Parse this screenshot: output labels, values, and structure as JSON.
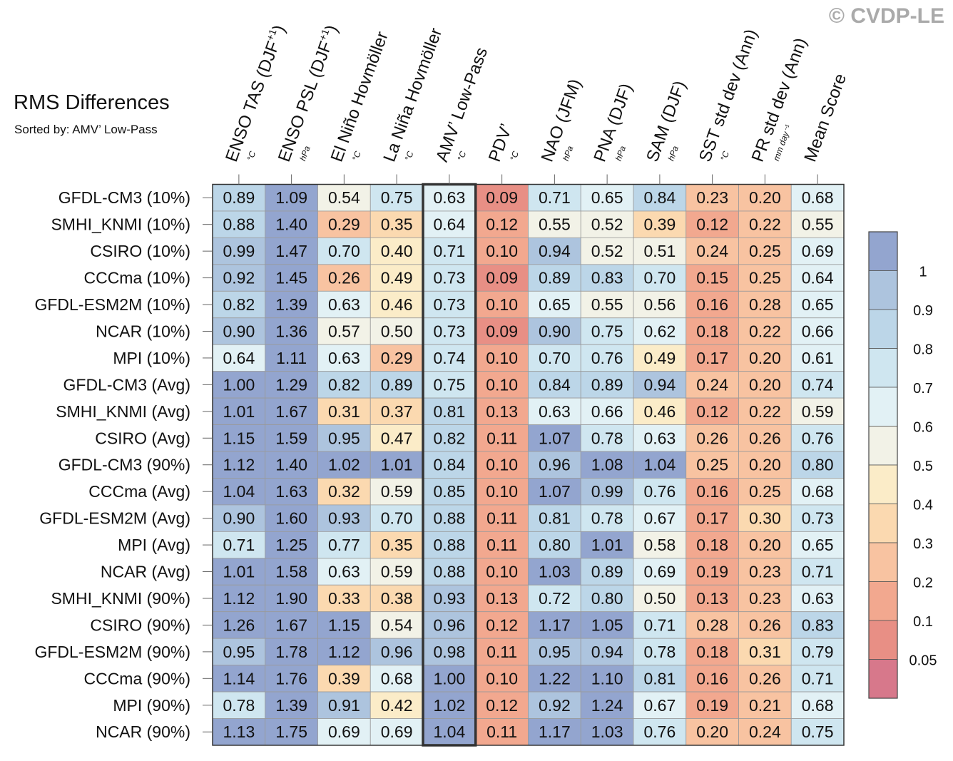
{
  "header": {
    "title": "RMS Differences",
    "subtitle": "Sorted by: AMV’ Low-Pass",
    "credit": "© CVDP-LE"
  },
  "chart_data": {
    "type": "heatmap",
    "title": "RMS Differences",
    "subtitle": "Sorted by: AMV’ Low-Pass",
    "columns": [
      {
        "label": "ENSO TAS (DJF",
        "sup": "+1",
        "close": ")",
        "unit": "°C"
      },
      {
        "label": "ENSO PSL (DJF",
        "sup": "+1",
        "close": ")",
        "unit": "hPa"
      },
      {
        "label": "El Niño Hovmöller",
        "sup": "",
        "close": "",
        "unit": "°C"
      },
      {
        "label": "La Niña Hovmöller",
        "sup": "",
        "close": "",
        "unit": "°C"
      },
      {
        "label": "AMV’ Low-Pass",
        "sup": "",
        "close": "",
        "unit": "°C"
      },
      {
        "label": "PDV’",
        "sup": "",
        "close": "",
        "unit": "°C"
      },
      {
        "label": "NAO (JFM)",
        "sup": "",
        "close": "",
        "unit": "hPa"
      },
      {
        "label": "PNA (DJF)",
        "sup": "",
        "close": "",
        "unit": "hPa"
      },
      {
        "label": "SAM (DJF)",
        "sup": "",
        "close": "",
        "unit": "hPa"
      },
      {
        "label": "SST std dev (Ann)",
        "sup": "",
        "close": "",
        "unit": "°C"
      },
      {
        "label": "PR std dev (Ann)",
        "sup": "",
        "close": "",
        "unit": "mm day⁻¹"
      },
      {
        "label": "Mean Score",
        "sup": "",
        "close": "",
        "unit": ""
      }
    ],
    "highlight_column": 4,
    "rows": [
      {
        "name": "GFDL-CM3 (10%)",
        "values": [
          0.89,
          1.09,
          0.54,
          0.75,
          0.63,
          0.09,
          0.71,
          0.65,
          0.84,
          0.23,
          0.2,
          0.68
        ]
      },
      {
        "name": "SMHI_KNMI (10%)",
        "values": [
          0.88,
          1.4,
          0.29,
          0.35,
          0.64,
          0.12,
          0.55,
          0.52,
          0.39,
          0.12,
          0.22,
          0.55
        ]
      },
      {
        "name": "CSIRO (10%)",
        "values": [
          0.99,
          1.47,
          0.7,
          0.4,
          0.71,
          0.1,
          0.94,
          0.52,
          0.51,
          0.24,
          0.25,
          0.69
        ]
      },
      {
        "name": "CCCma (10%)",
        "values": [
          0.92,
          1.45,
          0.26,
          0.49,
          0.73,
          0.09,
          0.89,
          0.83,
          0.7,
          0.15,
          0.25,
          0.64
        ]
      },
      {
        "name": "GFDL-ESM2M (10%)",
        "values": [
          0.82,
          1.39,
          0.63,
          0.46,
          0.73,
          0.1,
          0.65,
          0.55,
          0.56,
          0.16,
          0.28,
          0.65
        ]
      },
      {
        "name": "NCAR (10%)",
        "values": [
          0.9,
          1.36,
          0.57,
          0.5,
          0.73,
          0.09,
          0.9,
          0.75,
          0.62,
          0.18,
          0.22,
          0.66
        ]
      },
      {
        "name": "MPI (10%)",
        "values": [
          0.64,
          1.11,
          0.63,
          0.29,
          0.74,
          0.1,
          0.7,
          0.76,
          0.49,
          0.17,
          0.2,
          0.61
        ]
      },
      {
        "name": "GFDL-CM3 (Avg)",
        "values": [
          1.0,
          1.29,
          0.82,
          0.89,
          0.75,
          0.1,
          0.84,
          0.89,
          0.94,
          0.24,
          0.2,
          0.74
        ]
      },
      {
        "name": "SMHI_KNMI (Avg)",
        "values": [
          1.01,
          1.67,
          0.31,
          0.37,
          0.81,
          0.13,
          0.63,
          0.66,
          0.46,
          0.12,
          0.22,
          0.59
        ]
      },
      {
        "name": "CSIRO (Avg)",
        "values": [
          1.15,
          1.59,
          0.95,
          0.47,
          0.82,
          0.11,
          1.07,
          0.78,
          0.63,
          0.26,
          0.26,
          0.76
        ]
      },
      {
        "name": "GFDL-CM3 (90%)",
        "values": [
          1.12,
          1.4,
          1.02,
          1.01,
          0.84,
          0.1,
          0.96,
          1.08,
          1.04,
          0.25,
          0.2,
          0.8
        ]
      },
      {
        "name": "CCCma (Avg)",
        "values": [
          1.04,
          1.63,
          0.32,
          0.59,
          0.85,
          0.1,
          1.07,
          0.99,
          0.76,
          0.16,
          0.25,
          0.68
        ]
      },
      {
        "name": "GFDL-ESM2M (Avg)",
        "values": [
          0.9,
          1.6,
          0.93,
          0.7,
          0.88,
          0.11,
          0.81,
          0.78,
          0.67,
          0.17,
          0.3,
          0.73
        ]
      },
      {
        "name": "MPI (Avg)",
        "values": [
          0.71,
          1.25,
          0.77,
          0.35,
          0.88,
          0.11,
          0.8,
          1.01,
          0.58,
          0.18,
          0.2,
          0.65
        ]
      },
      {
        "name": "NCAR (Avg)",
        "values": [
          1.01,
          1.58,
          0.63,
          0.59,
          0.88,
          0.1,
          1.03,
          0.89,
          0.69,
          0.19,
          0.23,
          0.71
        ]
      },
      {
        "name": "SMHI_KNMI (90%)",
        "values": [
          1.12,
          1.9,
          0.33,
          0.38,
          0.93,
          0.13,
          0.72,
          0.8,
          0.5,
          0.13,
          0.23,
          0.63
        ]
      },
      {
        "name": "CSIRO (90%)",
        "values": [
          1.26,
          1.67,
          1.15,
          0.54,
          0.96,
          0.12,
          1.17,
          1.05,
          0.71,
          0.28,
          0.26,
          0.83
        ]
      },
      {
        "name": "GFDL-ESM2M (90%)",
        "values": [
          0.95,
          1.78,
          1.12,
          0.96,
          0.98,
          0.11,
          0.95,
          0.94,
          0.78,
          0.18,
          0.31,
          0.79
        ]
      },
      {
        "name": "CCCma (90%)",
        "values": [
          1.14,
          1.76,
          0.39,
          0.68,
          1.0,
          0.1,
          1.22,
          1.1,
          0.81,
          0.16,
          0.26,
          0.71
        ]
      },
      {
        "name": "MPI (90%)",
        "values": [
          0.78,
          1.39,
          0.91,
          0.42,
          1.02,
          0.12,
          0.92,
          1.24,
          0.67,
          0.19,
          0.21,
          0.68
        ]
      },
      {
        "name": "NCAR (90%)",
        "values": [
          1.13,
          1.75,
          0.69,
          0.69,
          1.04,
          0.11,
          1.17,
          1.03,
          0.76,
          0.2,
          0.24,
          0.75
        ]
      }
    ],
    "colorbar": {
      "boundaries": [
        0.05,
        0.1,
        0.2,
        0.3,
        0.4,
        0.5,
        0.6,
        0.7,
        0.8,
        0.9,
        1
      ],
      "tick_labels": [
        "1",
        "0.9",
        "0.8",
        "0.7",
        "0.6",
        "0.5",
        "0.4",
        "0.3",
        "0.2",
        "0.1",
        "0.05"
      ],
      "colors_top_to_bottom": [
        "#93a5cf",
        "#adc4de",
        "#bcd6e8",
        "#cfe6f0",
        "#e2f1f5",
        "#f2f2e7",
        "#fbecc8",
        "#fbd9b0",
        "#f8c3a1",
        "#f2a88f",
        "#e88f85",
        "#d7788b"
      ]
    }
  }
}
